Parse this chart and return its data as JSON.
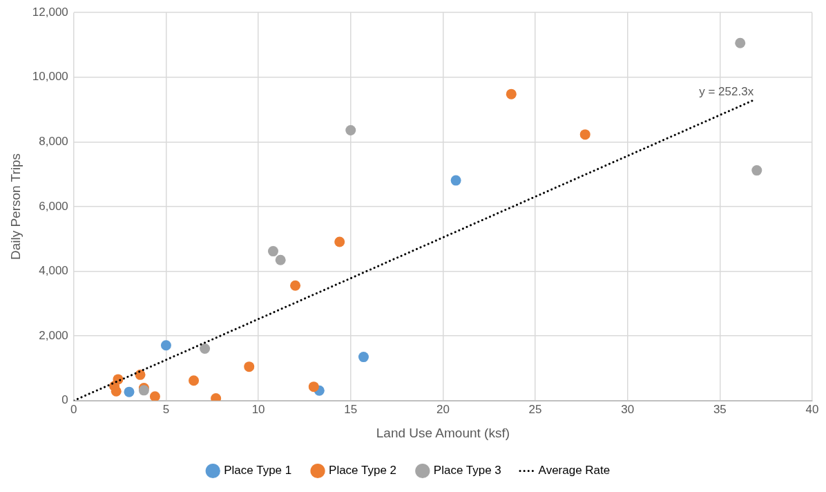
{
  "chart_data": {
    "type": "scatter",
    "xlabel": "Land Use Amount (ksf)",
    "ylabel": "Daily Person Trips",
    "xlim": [
      0,
      40
    ],
    "xticks": [
      0,
      5,
      10,
      15,
      20,
      25,
      30,
      35,
      40
    ],
    "ylim": [
      0,
      12000
    ],
    "yticks": [
      0,
      {
        "value": 2000,
        "label": "2,000"
      },
      {
        "value": 4000,
        "label": "4,000"
      },
      {
        "value": 6000,
        "label": "6,000"
      },
      {
        "value": 8000,
        "label": "8,000"
      },
      {
        "value": 10000,
        "label": "10,000"
      },
      {
        "value": 12000,
        "label": "12,000"
      }
    ],
    "grid": true,
    "legend": "bottom",
    "marker": "circle",
    "series": [
      {
        "name": "Place Type 1",
        "type": "scatter",
        "color": "#5b9bd5",
        "x": [
          5.0,
          3.0,
          15.7,
          13.3,
          20.7
        ],
        "values": [
          1710,
          270,
          1350,
          310,
          6810
        ]
      },
      {
        "name": "Place Type 2",
        "type": "scatter",
        "color": "#ed7d31",
        "x": [
          2.4,
          2.2,
          2.3,
          3.6,
          3.8,
          4.4,
          6.5,
          7.7,
          9.5,
          13.0,
          14.4,
          12.0,
          27.7,
          23.7
        ],
        "values": [
          660,
          450,
          290,
          800,
          390,
          130,
          620,
          70,
          1050,
          430,
          4910,
          3560,
          8230,
          9480
        ]
      },
      {
        "name": "Place Type 3",
        "type": "scatter",
        "color": "#a5a5a5",
        "x": [
          7.1,
          3.8,
          10.8,
          11.2,
          15.0,
          36.1,
          37.0
        ],
        "values": [
          1610,
          320,
          4620,
          4350,
          8360,
          11060,
          7120
        ]
      },
      {
        "name": "Average Rate",
        "type": "line",
        "color": "#000000",
        "marker": "none",
        "line_style": "dotted",
        "x": [
          0,
          36.9
        ],
        "values": [
          0,
          9310
        ]
      }
    ],
    "annotations": [
      {
        "text": "y = 252.3x",
        "x": 36.9,
        "y": 9310
      }
    ]
  }
}
